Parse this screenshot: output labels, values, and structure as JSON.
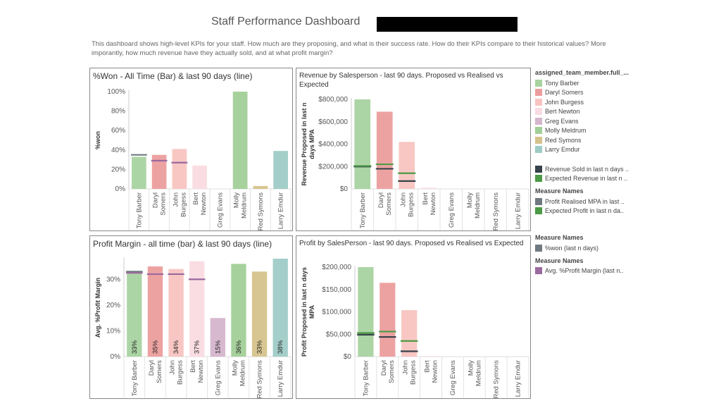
{
  "header": {
    "title": "Staff Performance Dashboard",
    "description": "This dashboard shows high-level KPIs for your staff. How much are they proposing, and what is their success rate. How do their KPIs compare to their historical values? More imporantly, how much revenue have they actually sold, and at what profit margin?"
  },
  "colors": {
    "Tony Barber": "#a8d3a0",
    "Daryl Somers": "#ec9d9d",
    "John Burgess": "#f8c4c0",
    "Bert Newton": "#fadbe2",
    "Greg Evans": "#d5b5cc",
    "Molly Meldrum": "#a2cf97",
    "Red Symons": "#d6c38c",
    "Larry Emdur": "#9fcbc6",
    "dark_line": "#37424a",
    "green_line": "#4c9a45",
    "gray_line": "#6f7a80",
    "purple_line": "#9a6a9e"
  },
  "legend": {
    "color_title": "assigned_team_member.full_...",
    "members": [
      "Tony Barber",
      "Daryl Somers",
      "John Burgess",
      "Bert Newton",
      "Greg Evans",
      "Molly Meldrum",
      "Red Symons",
      "Larry Emdur"
    ],
    "lines1": [
      "Revenue Sold in last n days ..",
      "Expected Revenue in last n .."
    ],
    "mn1_title": "Measure Names",
    "mn1": [
      "Profit Realised MPA in last ..",
      "Expected Profit in last n da.."
    ],
    "mn2_title": "Measure Names",
    "mn2": [
      "%won (last n days)"
    ],
    "mn3_title": "Measure Names",
    "mn3": [
      "Avg. %Profit Margin (last n.."
    ]
  },
  "chart_data": [
    {
      "id": "won",
      "type": "bar",
      "title": "%Won - All Time (Bar) & last 90 days (line)",
      "ylabel": "%won",
      "ylim": [
        0,
        100
      ],
      "yticks": [
        0,
        20,
        40,
        60,
        80,
        100
      ],
      "tick_labels": [
        "0%",
        "20%",
        "40%",
        "60%",
        "80%",
        "100%"
      ],
      "categories": [
        [
          "Tony Barber"
        ],
        [
          "Daryl",
          "Somers"
        ],
        [
          "John",
          "Burgess"
        ],
        [
          "Bert",
          "Newton"
        ],
        [
          "Greg Evans"
        ],
        [
          "Molly",
          "Meldrum"
        ],
        [
          "Red Symons"
        ],
        [
          "Larry Emdur"
        ]
      ],
      "members": [
        "Tony Barber",
        "Daryl Somers",
        "John Burgess",
        "Bert Newton",
        "Greg Evans",
        "Molly Meldrum",
        "Red Symons",
        "Larry Emdur"
      ],
      "values": [
        33,
        35,
        41,
        24,
        0,
        100,
        3,
        39
      ],
      "lines": [
        {
          "color_key": "gray_line",
          "values": [
            35,
            null,
            null,
            null,
            null,
            null,
            null,
            null
          ]
        },
        {
          "color_key": "purple_line",
          "values": [
            null,
            29,
            27,
            null,
            null,
            null,
            null,
            null
          ]
        }
      ]
    },
    {
      "id": "revenue",
      "type": "bar",
      "title": "Revenue by Salesperson - last 90 days. Proposed vs Realised  vs Expected",
      "ylabel": "Revenue Proposed in last n days MPA",
      "ylim": [
        0,
        800000
      ],
      "yticks": [
        0,
        200000,
        400000,
        600000,
        800000
      ],
      "tick_labels": [
        "$0",
        "$200,000",
        "$400,000",
        "$600,000",
        "$800,000"
      ],
      "categories": [
        [
          "Tony Barber"
        ],
        [
          "Daryl",
          "Somers"
        ],
        [
          "John",
          "Burgess"
        ],
        [
          "Bert",
          "Newton"
        ],
        [
          "Greg Evans"
        ],
        [
          "Molly",
          "Meldrum"
        ],
        [
          "Red Symons"
        ],
        [
          "Larry Emdur"
        ]
      ],
      "members": [
        "Tony Barber",
        "Daryl Somers",
        "John Burgess",
        "Bert Newton",
        "Greg Evans",
        "Molly Meldrum",
        "Red Symons",
        "Larry Emdur"
      ],
      "values": [
        800000,
        690000,
        420000,
        10000,
        0,
        0,
        0,
        0
      ],
      "lines": [
        {
          "color_key": "dark_line",
          "values": [
            200000,
            180000,
            70000,
            null,
            null,
            null,
            null,
            null
          ]
        },
        {
          "color_key": "green_line",
          "values": [
            205000,
            220000,
            140000,
            null,
            null,
            null,
            null,
            null
          ]
        }
      ]
    },
    {
      "id": "margin",
      "type": "bar",
      "title": "Profit Margin - all time (bar) & last 90 days (line)",
      "ylabel": "Avg. %Profit Margin",
      "ylim": [
        0,
        38
      ],
      "yticks": [
        0,
        10,
        20,
        30
      ],
      "tick_labels": [
        "0%",
        "10%",
        "20%",
        "30%"
      ],
      "categories": [
        [
          "Tony Barber"
        ],
        [
          "Daryl",
          "Somers"
        ],
        [
          "John",
          "Burgess"
        ],
        [
          "Bert",
          "Newton"
        ],
        [
          "Greg Evans"
        ],
        [
          "Molly",
          "Meldrum"
        ],
        [
          "Red Symons"
        ],
        [
          "Larry Emdur"
        ]
      ],
      "members": [
        "Tony Barber",
        "Daryl Somers",
        "John Burgess",
        "Bert Newton",
        "Greg Evans",
        "Molly Meldrum",
        "Red Symons",
        "Larry Emdur"
      ],
      "values": [
        33,
        35,
        34,
        37,
        15,
        36,
        33,
        38
      ],
      "data_labels": [
        "33%",
        "35%",
        "34%",
        "37%",
        "15%",
        "36%",
        "33%",
        "38%"
      ],
      "lines": [
        {
          "color_key": "gray_line",
          "values": [
            33,
            null,
            null,
            null,
            null,
            null,
            null,
            null
          ]
        },
        {
          "color_key": "purple_line",
          "values": [
            32.5,
            32,
            32,
            30,
            null,
            null,
            null,
            null
          ]
        }
      ]
    },
    {
      "id": "profit",
      "type": "bar",
      "title": "Profit by SalesPerson - last 90 days. Proposed vs Realised vs Expected",
      "ylabel": "Profit Proposed in last n days MPA",
      "ylim": [
        0,
        200000
      ],
      "yticks": [
        0,
        50000,
        100000,
        150000,
        200000
      ],
      "tick_labels": [
        "$0",
        "$50,000",
        "$100,000",
        "$150,000",
        "$200,000"
      ],
      "categories": [
        [
          "Tony Barber"
        ],
        [
          "Daryl",
          "Somers"
        ],
        [
          "John",
          "Burgess"
        ],
        [
          "Bert",
          "Newton"
        ],
        [
          "Greg Evans"
        ],
        [
          "Molly",
          "Meldrum"
        ],
        [
          "Red Symons"
        ],
        [
          "Larry Emdur"
        ]
      ],
      "members": [
        "Tony Barber",
        "Daryl Somers",
        "John Burgess",
        "Bert Newton",
        "Greg Evans",
        "Molly Meldrum",
        "Red Symons",
        "Larry Emdur"
      ],
      "values": [
        200000,
        165000,
        104000,
        1500,
        0,
        0,
        0,
        0
      ],
      "lines": [
        {
          "color_key": "dark_line",
          "values": [
            49000,
            44000,
            12000,
            null,
            null,
            null,
            null,
            null
          ]
        },
        {
          "color_key": "green_line",
          "values": [
            53000,
            56000,
            35000,
            null,
            null,
            null,
            null,
            null
          ]
        }
      ]
    }
  ]
}
